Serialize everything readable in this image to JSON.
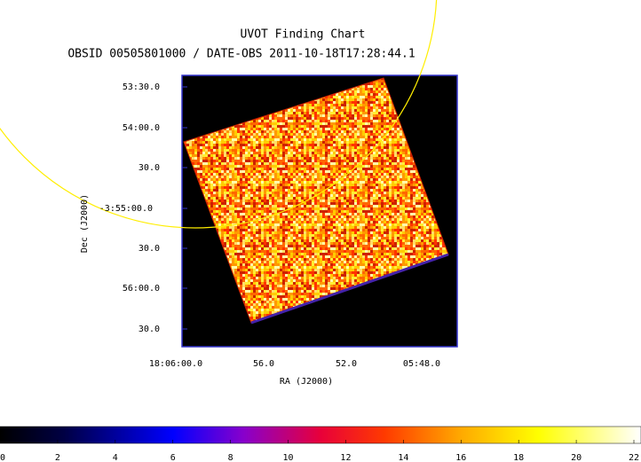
{
  "title": "UVOT Finding Chart",
  "subtitle": "OBSID 00505801000 / DATE-OBS 2011-10-18T17:28:44.1",
  "x_axis": {
    "label": "RA (J2000)",
    "ticks": [
      "18:06:00.0",
      "56.0",
      "52.0",
      "05:48.0"
    ]
  },
  "y_axis": {
    "label": "Dec (J2000)",
    "ticks": [
      "53:30.0",
      "54:00.0",
      "30.0",
      "-3:55:00.0",
      "30.0",
      "56:00.0",
      "30.0"
    ]
  },
  "colorbar": {
    "range": [
      0,
      22
    ],
    "ticks": [
      0,
      2,
      4,
      6,
      8,
      10,
      12,
      14,
      16,
      18,
      20,
      22
    ]
  }
}
